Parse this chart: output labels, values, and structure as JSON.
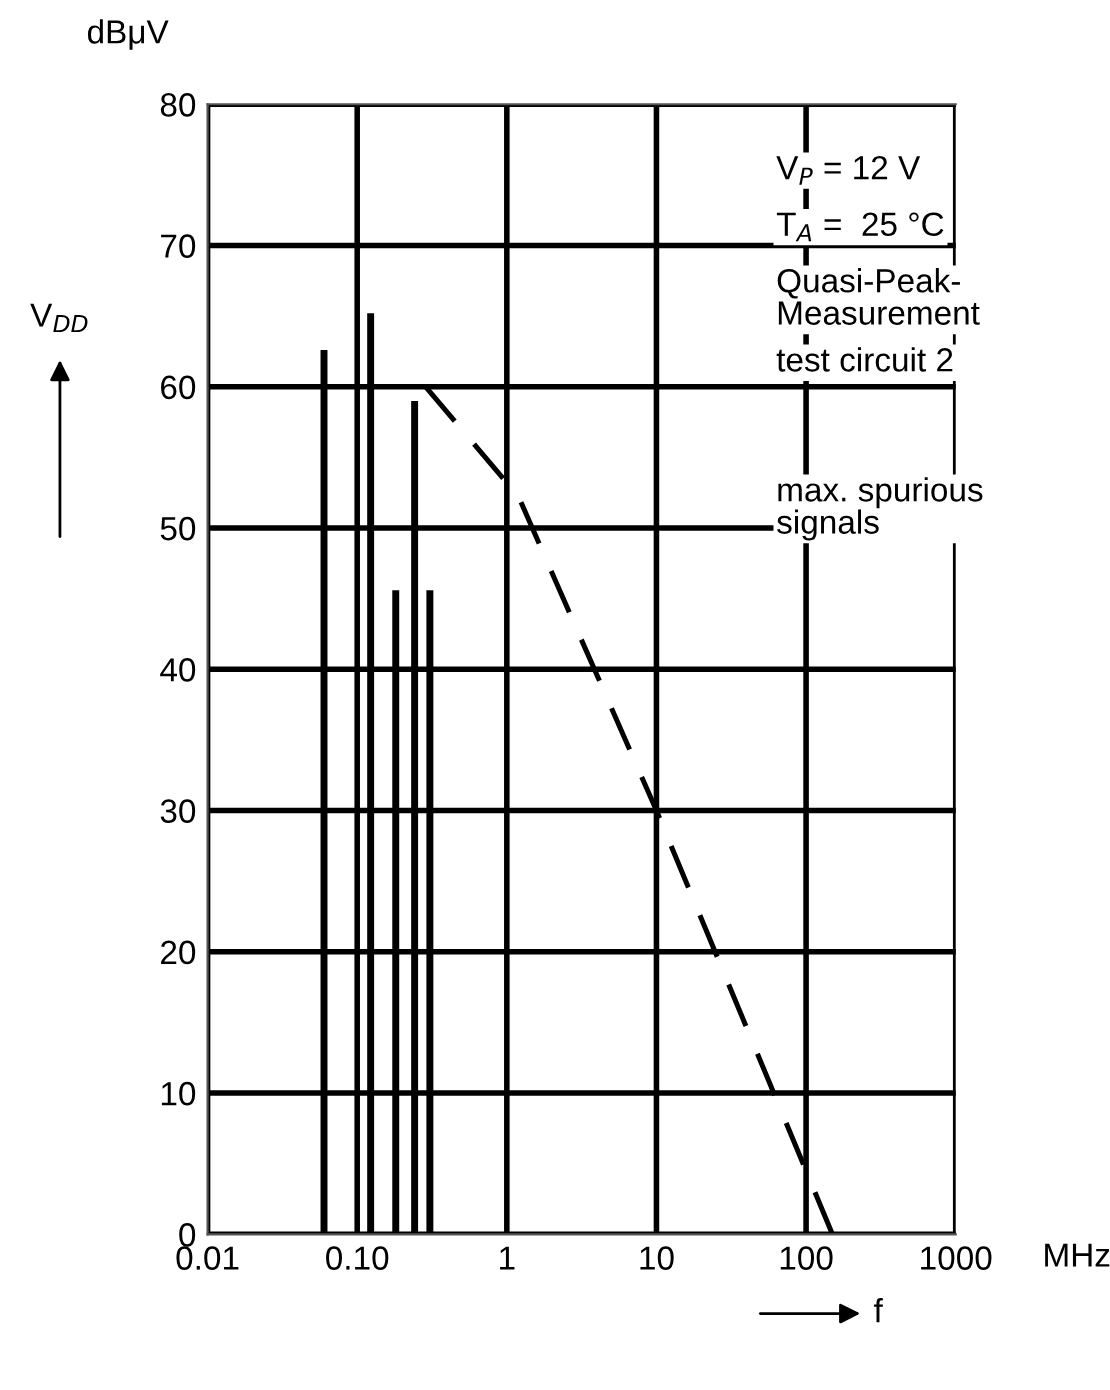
{
  "chart_data": {
    "type": "bar",
    "xlabel": "f",
    "ylabel": "V$_{DD}$",
    "annotations": [
      "dBμV",
      "MHz",
      "V$_{P}$ = 12 V",
      "T$_{A}$ =  25 °C",
      "Quasi-Peak-\nMeasurement",
      "test circuit 2"
    ],
    "log": "x",
    "xlim": [
      0.01,
      1000
    ],
    "xticks": [
      0.01,
      {
        "value": 0.1,
        "label": "0.10"
      },
      1,
      10,
      100,
      1000
    ],
    "ylim": [
      0,
      80
    ],
    "yticks": [
      0,
      10,
      20,
      30,
      40,
      50,
      60,
      70,
      80
    ],
    "grid": true,
    "legend": false,
    "series": [
      {
        "color": "#000000",
        "x": [
          0.06,
          0.123,
          0.181,
          0.242,
          0.306
        ],
        "values": [
          62.6,
          65.2,
          45.6,
          59.0,
          45.6
        ]
      },
      {
        "type": "line",
        "name": "max. spurious\nsignals",
        "color": "#000000",
        "line_style": "dashed",
        "marker": "none",
        "x": [
          0.287,
          1.2,
          10,
          150
        ],
        "values": [
          60,
          52.2,
          30,
          0
        ]
      }
    ]
  }
}
